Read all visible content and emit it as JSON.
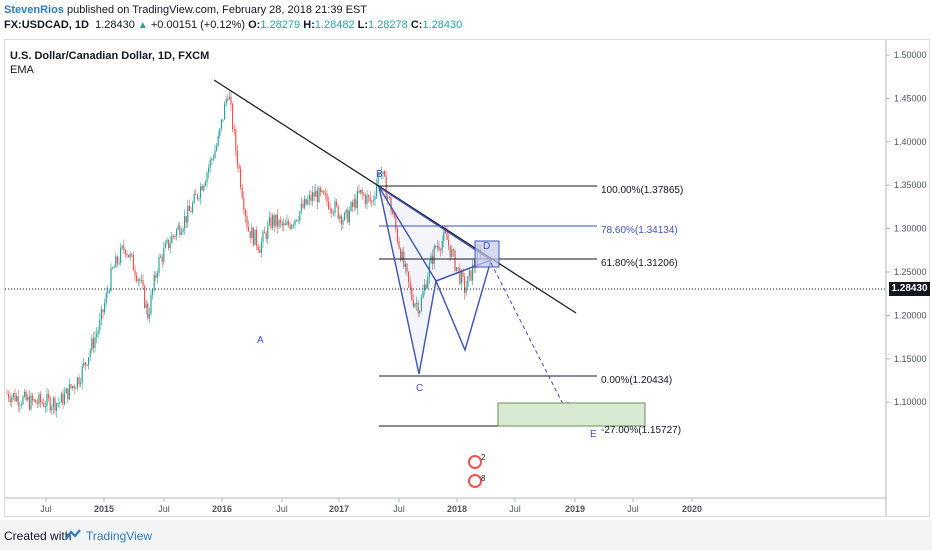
{
  "header": {
    "author": "StevenRios",
    "published_text": "published on TradingView.com, February 28, 2018 21:39 EST",
    "symbol": "FX:USDCAD, 1D",
    "last": "1.28430",
    "change": "+0.00151 (+0.12%)",
    "open_label": "O:",
    "open": "1.28279",
    "high_label": "H:",
    "high": "1.28482",
    "low_label": "L:",
    "low": "1.28278",
    "close_label": "C:",
    "close": "1.28430"
  },
  "chart": {
    "title": "U.S. Dollar/Canadian Dollar, 1D, FXCM",
    "indicator": "EMA",
    "current_price_tag": "1.28430",
    "price_axis": [
      "1.50000",
      "1.45000",
      "1.40000",
      "1.35000",
      "1.30000",
      "1.25000",
      "1.20000",
      "1.15000",
      "1.10000"
    ],
    "time_axis": [
      "Jul",
      "2015",
      "Jul",
      "2016",
      "Jul",
      "2017",
      "Jul",
      "2018",
      "Jul",
      "2019",
      "Jul",
      "2020"
    ],
    "pattern_points": [
      "A",
      "B",
      "C",
      "D",
      "E"
    ],
    "fib_levels": [
      {
        "label": "100.00%(1.37865)",
        "price": 1.37865,
        "color": "#131722"
      },
      {
        "label": "78.60%(1.34134)",
        "price": 1.34134,
        "color": "#3f51b5"
      },
      {
        "label": "61.80%(1.31206)",
        "price": 1.31206,
        "color": "#131722"
      },
      {
        "label": "0.00%(1.20434)",
        "price": 1.20434,
        "color": "#131722"
      },
      {
        "label": "-27.00%(1.15727)",
        "price": 1.15727,
        "color": "#131722"
      }
    ],
    "event_badges": [
      "2",
      "8"
    ],
    "colors": {
      "bull": "#26a69a",
      "bear": "#ef5350",
      "pattern": "#3f51b5",
      "target_zone": "#d9ead3"
    }
  },
  "footer": {
    "created_with": "Created with",
    "brand": "TradingView"
  }
}
